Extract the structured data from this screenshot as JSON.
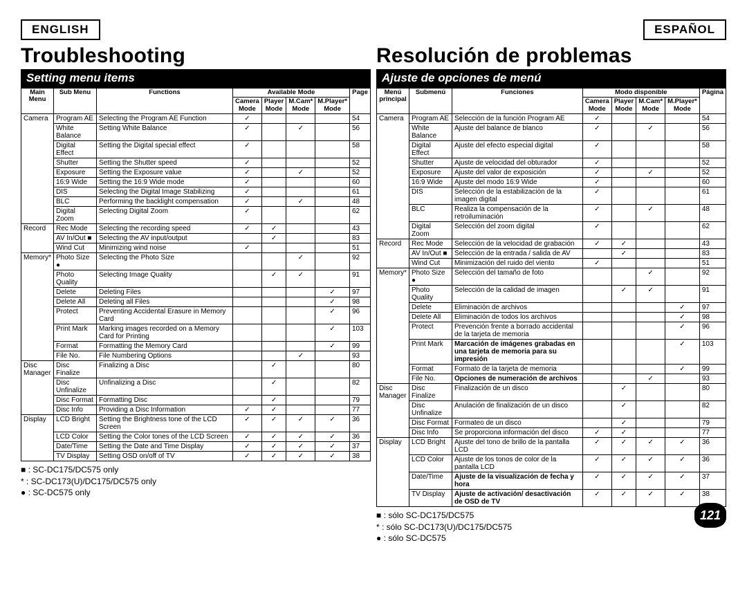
{
  "english": {
    "lang_label": "ENGLISH",
    "title": "Troubleshooting",
    "subheader": "Setting menu items",
    "headers": {
      "main_menu": "Main\nMenu",
      "sub_menu": "Sub Menu",
      "functions": "Functions",
      "available_mode": "Available Mode",
      "camera": "Camera\nMode",
      "player": "Player\nMode",
      "mcam": "M.Cam*\nMode",
      "mplayer": "M.Player*\nMode",
      "page": "Page"
    },
    "sections": [
      {
        "main": "Camera",
        "rows": [
          {
            "sub": "Program AE",
            "fn": "Selecting the Program AE Function",
            "m": [
              1,
              0,
              0,
              0
            ],
            "p": "54"
          },
          {
            "sub": "White Balance",
            "fn": "Setting White Balance",
            "m": [
              1,
              0,
              1,
              0
            ],
            "p": "56"
          },
          {
            "sub": "Digital Effect",
            "fn": "Setting the Digital special effect",
            "m": [
              1,
              0,
              0,
              0
            ],
            "p": "58"
          },
          {
            "sub": "Shutter",
            "fn": "Setting the Shutter speed",
            "m": [
              1,
              0,
              0,
              0
            ],
            "p": "52"
          },
          {
            "sub": "Exposure",
            "fn": "Setting the Exposure value",
            "m": [
              1,
              0,
              1,
              0
            ],
            "p": "52"
          },
          {
            "sub": "16:9 Wide",
            "fn": "Setting the 16:9 Wide mode",
            "m": [
              1,
              0,
              0,
              0
            ],
            "p": "60"
          },
          {
            "sub": "DIS",
            "fn": "Selecting the Digital Image Stabilizing",
            "m": [
              1,
              0,
              0,
              0
            ],
            "p": "61"
          },
          {
            "sub": "BLC",
            "fn": "Performing the backlight compensation",
            "m": [
              1,
              0,
              1,
              0
            ],
            "p": "48"
          },
          {
            "sub": "Digital Zoom",
            "fn": "Selecting Digital Zoom",
            "m": [
              1,
              0,
              0,
              0
            ],
            "p": "62"
          }
        ]
      },
      {
        "main": "Record",
        "rows": [
          {
            "sub": "Rec Mode",
            "fn": "Selecting the recording speed",
            "m": [
              1,
              1,
              0,
              0
            ],
            "p": "43"
          },
          {
            "sub": "AV In/Out ■",
            "fn": "Selecting the AV input/output",
            "m": [
              0,
              1,
              0,
              0
            ],
            "p": "83"
          },
          {
            "sub": "Wind Cut",
            "fn": "Minimizing wind noise",
            "m": [
              1,
              0,
              0,
              0
            ],
            "p": "51"
          }
        ]
      },
      {
        "main": "Memory*",
        "rows": [
          {
            "sub": "Photo Size ●",
            "fn": "Selecting the Photo Size",
            "m": [
              0,
              0,
              1,
              0
            ],
            "p": "92"
          },
          {
            "sub": "Photo Quality",
            "fn": "Selecting Image Quality",
            "m": [
              0,
              1,
              1,
              0
            ],
            "p": "91"
          },
          {
            "sub": "Delete",
            "fn": "Deleting Files",
            "m": [
              0,
              0,
              0,
              1
            ],
            "p": "97"
          },
          {
            "sub": "Delete All",
            "fn": "Deleting all Files",
            "m": [
              0,
              0,
              0,
              1
            ],
            "p": "98"
          },
          {
            "sub": "Protect",
            "fn": "Preventing Accidental Erasure in Memory Card",
            "m": [
              0,
              0,
              0,
              1
            ],
            "p": "96"
          },
          {
            "sub": "Print Mark",
            "fn": "Marking images recorded on a Memory Card for Printing",
            "m": [
              0,
              0,
              0,
              1
            ],
            "p": "103"
          },
          {
            "sub": "Format",
            "fn": "Formatting the Memory Card",
            "m": [
              0,
              0,
              0,
              1
            ],
            "p": "99"
          },
          {
            "sub": "File No.",
            "fn": "File Numbering Options",
            "m": [
              0,
              0,
              1,
              0
            ],
            "p": "93"
          }
        ]
      },
      {
        "main": "Disc Manager",
        "rows": [
          {
            "sub": "Disc Finalize",
            "fn": "Finalizing a Disc",
            "m": [
              0,
              1,
              0,
              0
            ],
            "p": "80"
          },
          {
            "sub": "Disc Unfinalize",
            "fn": "Unfinalizing a Disc",
            "m": [
              0,
              1,
              0,
              0
            ],
            "p": "82"
          },
          {
            "sub": "Disc Format",
            "fn": "Formatting Disc",
            "m": [
              0,
              1,
              0,
              0
            ],
            "p": "79"
          },
          {
            "sub": "Disc Info",
            "fn": "Providing a Disc Information",
            "m": [
              1,
              1,
              0,
              0
            ],
            "p": "77"
          }
        ]
      },
      {
        "main": "Display",
        "rows": [
          {
            "sub": "LCD Bright",
            "fn": "Setting the Brightness tone of the LCD Screen",
            "m": [
              1,
              1,
              1,
              1
            ],
            "p": "36"
          },
          {
            "sub": "LCD Color",
            "fn": "Setting the Color tones of the LCD Screen",
            "m": [
              1,
              1,
              1,
              1
            ],
            "p": "36"
          },
          {
            "sub": "Date/Time",
            "fn": "Setting the Date and Time Display",
            "m": [
              1,
              1,
              1,
              1
            ],
            "p": "37"
          },
          {
            "sub": "TV Display",
            "fn": "Setting OSD on/off of TV",
            "m": [
              1,
              1,
              1,
              1
            ],
            "p": "38"
          }
        ]
      }
    ],
    "footnotes": [
      "■ : SC-DC175/DC575 only",
      "*  : SC-DC173(U)/DC175/DC575 only",
      "● : SC-DC575 only"
    ]
  },
  "spanish": {
    "lang_label": "ESPAÑOL",
    "title": "Resolución de problemas",
    "subheader": "Ajuste de opciones de menú",
    "headers": {
      "main_menu": "Menú\nprincipal",
      "sub_menu": "Submenú",
      "functions": "Funciones",
      "available_mode": "Modo disponible",
      "camera": "Camera\nMode",
      "player": "Player\nMode",
      "mcam": "M.Cam*\nMode",
      "mplayer": "M.Player*\nMode",
      "page": "Página"
    },
    "sections": [
      {
        "main": "Camera",
        "rows": [
          {
            "sub": "Program AE",
            "fn": "Selección de la función Program AE",
            "m": [
              1,
              0,
              0,
              0
            ],
            "p": "54"
          },
          {
            "sub": "White Balance",
            "fn": "Ajuste del balance de blanco",
            "m": [
              1,
              0,
              1,
              0
            ],
            "p": "56"
          },
          {
            "sub": "Digital Effect",
            "fn": "Ajuste del efecto especial digital",
            "m": [
              1,
              0,
              0,
              0
            ],
            "p": "58"
          },
          {
            "sub": "Shutter",
            "fn": "Ajuste de velocidad del obturador",
            "m": [
              1,
              0,
              0,
              0
            ],
            "p": "52"
          },
          {
            "sub": "Exposure",
            "fn": "Ajuste del valor de exposición",
            "m": [
              1,
              0,
              1,
              0
            ],
            "p": "52"
          },
          {
            "sub": "16:9 Wide",
            "fn": "Ajuste del modo 16:9 Wide",
            "m": [
              1,
              0,
              0,
              0
            ],
            "p": "60"
          },
          {
            "sub": "DIS",
            "fn": "Selección de la estabilización de la imagen digital",
            "m": [
              1,
              0,
              0,
              0
            ],
            "p": "61"
          },
          {
            "sub": "BLC",
            "fn": "Realiza la compensación de la retroiluminación",
            "m": [
              1,
              0,
              1,
              0
            ],
            "p": "48"
          },
          {
            "sub": "Digital Zoom",
            "fn": "Selección del zoom digital",
            "m": [
              1,
              0,
              0,
              0
            ],
            "p": "62"
          }
        ]
      },
      {
        "main": "Record",
        "rows": [
          {
            "sub": "Rec Mode",
            "fn": "Selección de la velocidad de grabación",
            "m": [
              1,
              1,
              0,
              0
            ],
            "p": "43"
          },
          {
            "sub": "AV In/Out ■",
            "fn": "Selección de la entrada / salida de AV",
            "m": [
              0,
              1,
              0,
              0
            ],
            "p": "83"
          },
          {
            "sub": "Wind Cut",
            "fn": "Minimización del ruido del viento",
            "m": [
              1,
              0,
              0,
              0
            ],
            "p": "51"
          }
        ]
      },
      {
        "main": "Memory*",
        "rows": [
          {
            "sub": "Photo Size ●",
            "fn": "Selección del tamaño de foto",
            "m": [
              0,
              0,
              1,
              0
            ],
            "p": "92"
          },
          {
            "sub": "Photo Quality",
            "fn": "Selección de la calidad de imagen",
            "m": [
              0,
              1,
              1,
              0
            ],
            "p": "91"
          },
          {
            "sub": "Delete",
            "fn": "Eliminación de archivos",
            "m": [
              0,
              0,
              0,
              1
            ],
            "p": "97"
          },
          {
            "sub": "Delete All",
            "fn": "Eliminación de todos los archivos",
            "m": [
              0,
              0,
              0,
              1
            ],
            "p": "98"
          },
          {
            "sub": "Protect",
            "fn": "Prevención frente a borrado accidental de la tarjeta de memoria",
            "m": [
              0,
              0,
              0,
              1
            ],
            "p": "96"
          },
          {
            "sub": "Print Mark",
            "fn": "Marcación de imágenes grabadas en una tarjeta de memoria para su impresión",
            "bold": true,
            "m": [
              0,
              0,
              0,
              1
            ],
            "p": "103"
          },
          {
            "sub": "Format",
            "fn": "Formato de la tarjeta de memoria",
            "m": [
              0,
              0,
              0,
              1
            ],
            "p": "99"
          },
          {
            "sub": "File No.",
            "fn": "Opciones de numeración de archivos",
            "bold": true,
            "m": [
              0,
              0,
              1,
              0
            ],
            "p": "93"
          }
        ]
      },
      {
        "main": "Disc Manager",
        "rows": [
          {
            "sub": "Disc Finalize",
            "fn": "Finalización de un disco",
            "m": [
              0,
              1,
              0,
              0
            ],
            "p": "80"
          },
          {
            "sub": "Disc Unfinalize",
            "fn": "Anulación de finalización de un disco",
            "m": [
              0,
              1,
              0,
              0
            ],
            "p": "82"
          },
          {
            "sub": "Disc Format",
            "fn": "Formateo de un disco",
            "m": [
              0,
              1,
              0,
              0
            ],
            "p": "79"
          },
          {
            "sub": "Disc Info",
            "fn": "Se proporciona información del disco",
            "m": [
              1,
              1,
              0,
              0
            ],
            "p": "77"
          }
        ]
      },
      {
        "main": "Display",
        "rows": [
          {
            "sub": "LCD Bright",
            "fn": "Ajuste del tono de brillo de la pantalla LCD",
            "m": [
              1,
              1,
              1,
              1
            ],
            "p": "36"
          },
          {
            "sub": "LCD Color",
            "fn": "Ajuste de los tonos de color de la pantalla LCD",
            "m": [
              1,
              1,
              1,
              1
            ],
            "p": "36"
          },
          {
            "sub": "Date/Time",
            "fn": "Ajuste de la visualización de fecha y hora",
            "bold": true,
            "m": [
              1,
              1,
              1,
              1
            ],
            "p": "37"
          },
          {
            "sub": "TV Display",
            "fn": "Ajuste de activación/ desactivación de OSD de TV",
            "bold": true,
            "m": [
              1,
              1,
              1,
              1
            ],
            "p": "38"
          }
        ]
      }
    ],
    "footnotes": [
      "■ : sólo SC-DC175/DC575",
      "*  : sólo SC-DC173(U)/DC175/DC575",
      "● : sólo SC-DC575"
    ]
  },
  "page_number": "121"
}
